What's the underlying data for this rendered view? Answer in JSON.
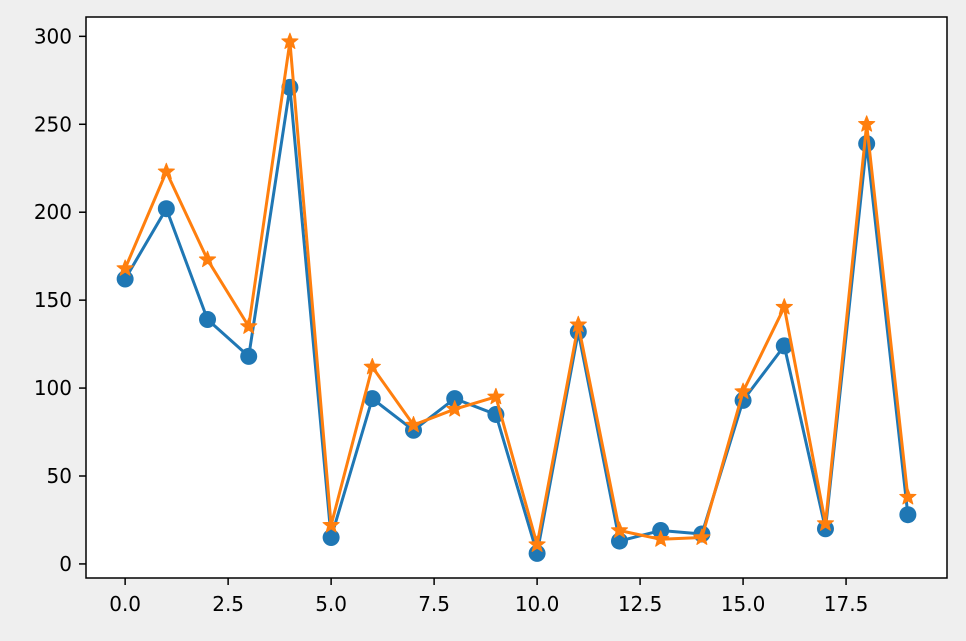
{
  "chart_data": {
    "type": "line",
    "title": "",
    "xlabel": "",
    "ylabel": "",
    "xlim": [
      -0.95,
      19.95
    ],
    "ylim": [
      -8,
      311
    ],
    "grid": false,
    "x": [
      0,
      1,
      2,
      3,
      4,
      5,
      6,
      7,
      8,
      9,
      10,
      11,
      12,
      13,
      14,
      15,
      16,
      17,
      18,
      19
    ],
    "x_ticks": [
      0.0,
      2.5,
      5.0,
      7.5,
      10.0,
      12.5,
      15.0,
      17.5
    ],
    "x_tick_labels": [
      "0.0",
      "2.5",
      "5.0",
      "7.5",
      "10.0",
      "12.5",
      "15.0",
      "17.5"
    ],
    "y_ticks": [
      0,
      50,
      100,
      150,
      200,
      250,
      300
    ],
    "y_tick_labels": [
      "0",
      "50",
      "100",
      "150",
      "200",
      "250",
      "300"
    ],
    "series": [
      {
        "color": "#1f77b4",
        "marker": "circle",
        "values": [
          162,
          202,
          139,
          118,
          271,
          15,
          94,
          76,
          94,
          85,
          6,
          132,
          13,
          19,
          17,
          93,
          124,
          20,
          239,
          28
        ]
      },
      {
        "color": "#ff7f0e",
        "marker": "star",
        "values": [
          168,
          223,
          173,
          135,
          297,
          22,
          112,
          79,
          88,
          95,
          11,
          136,
          19,
          14,
          15,
          98,
          146,
          23,
          250,
          38
        ]
      }
    ]
  }
}
